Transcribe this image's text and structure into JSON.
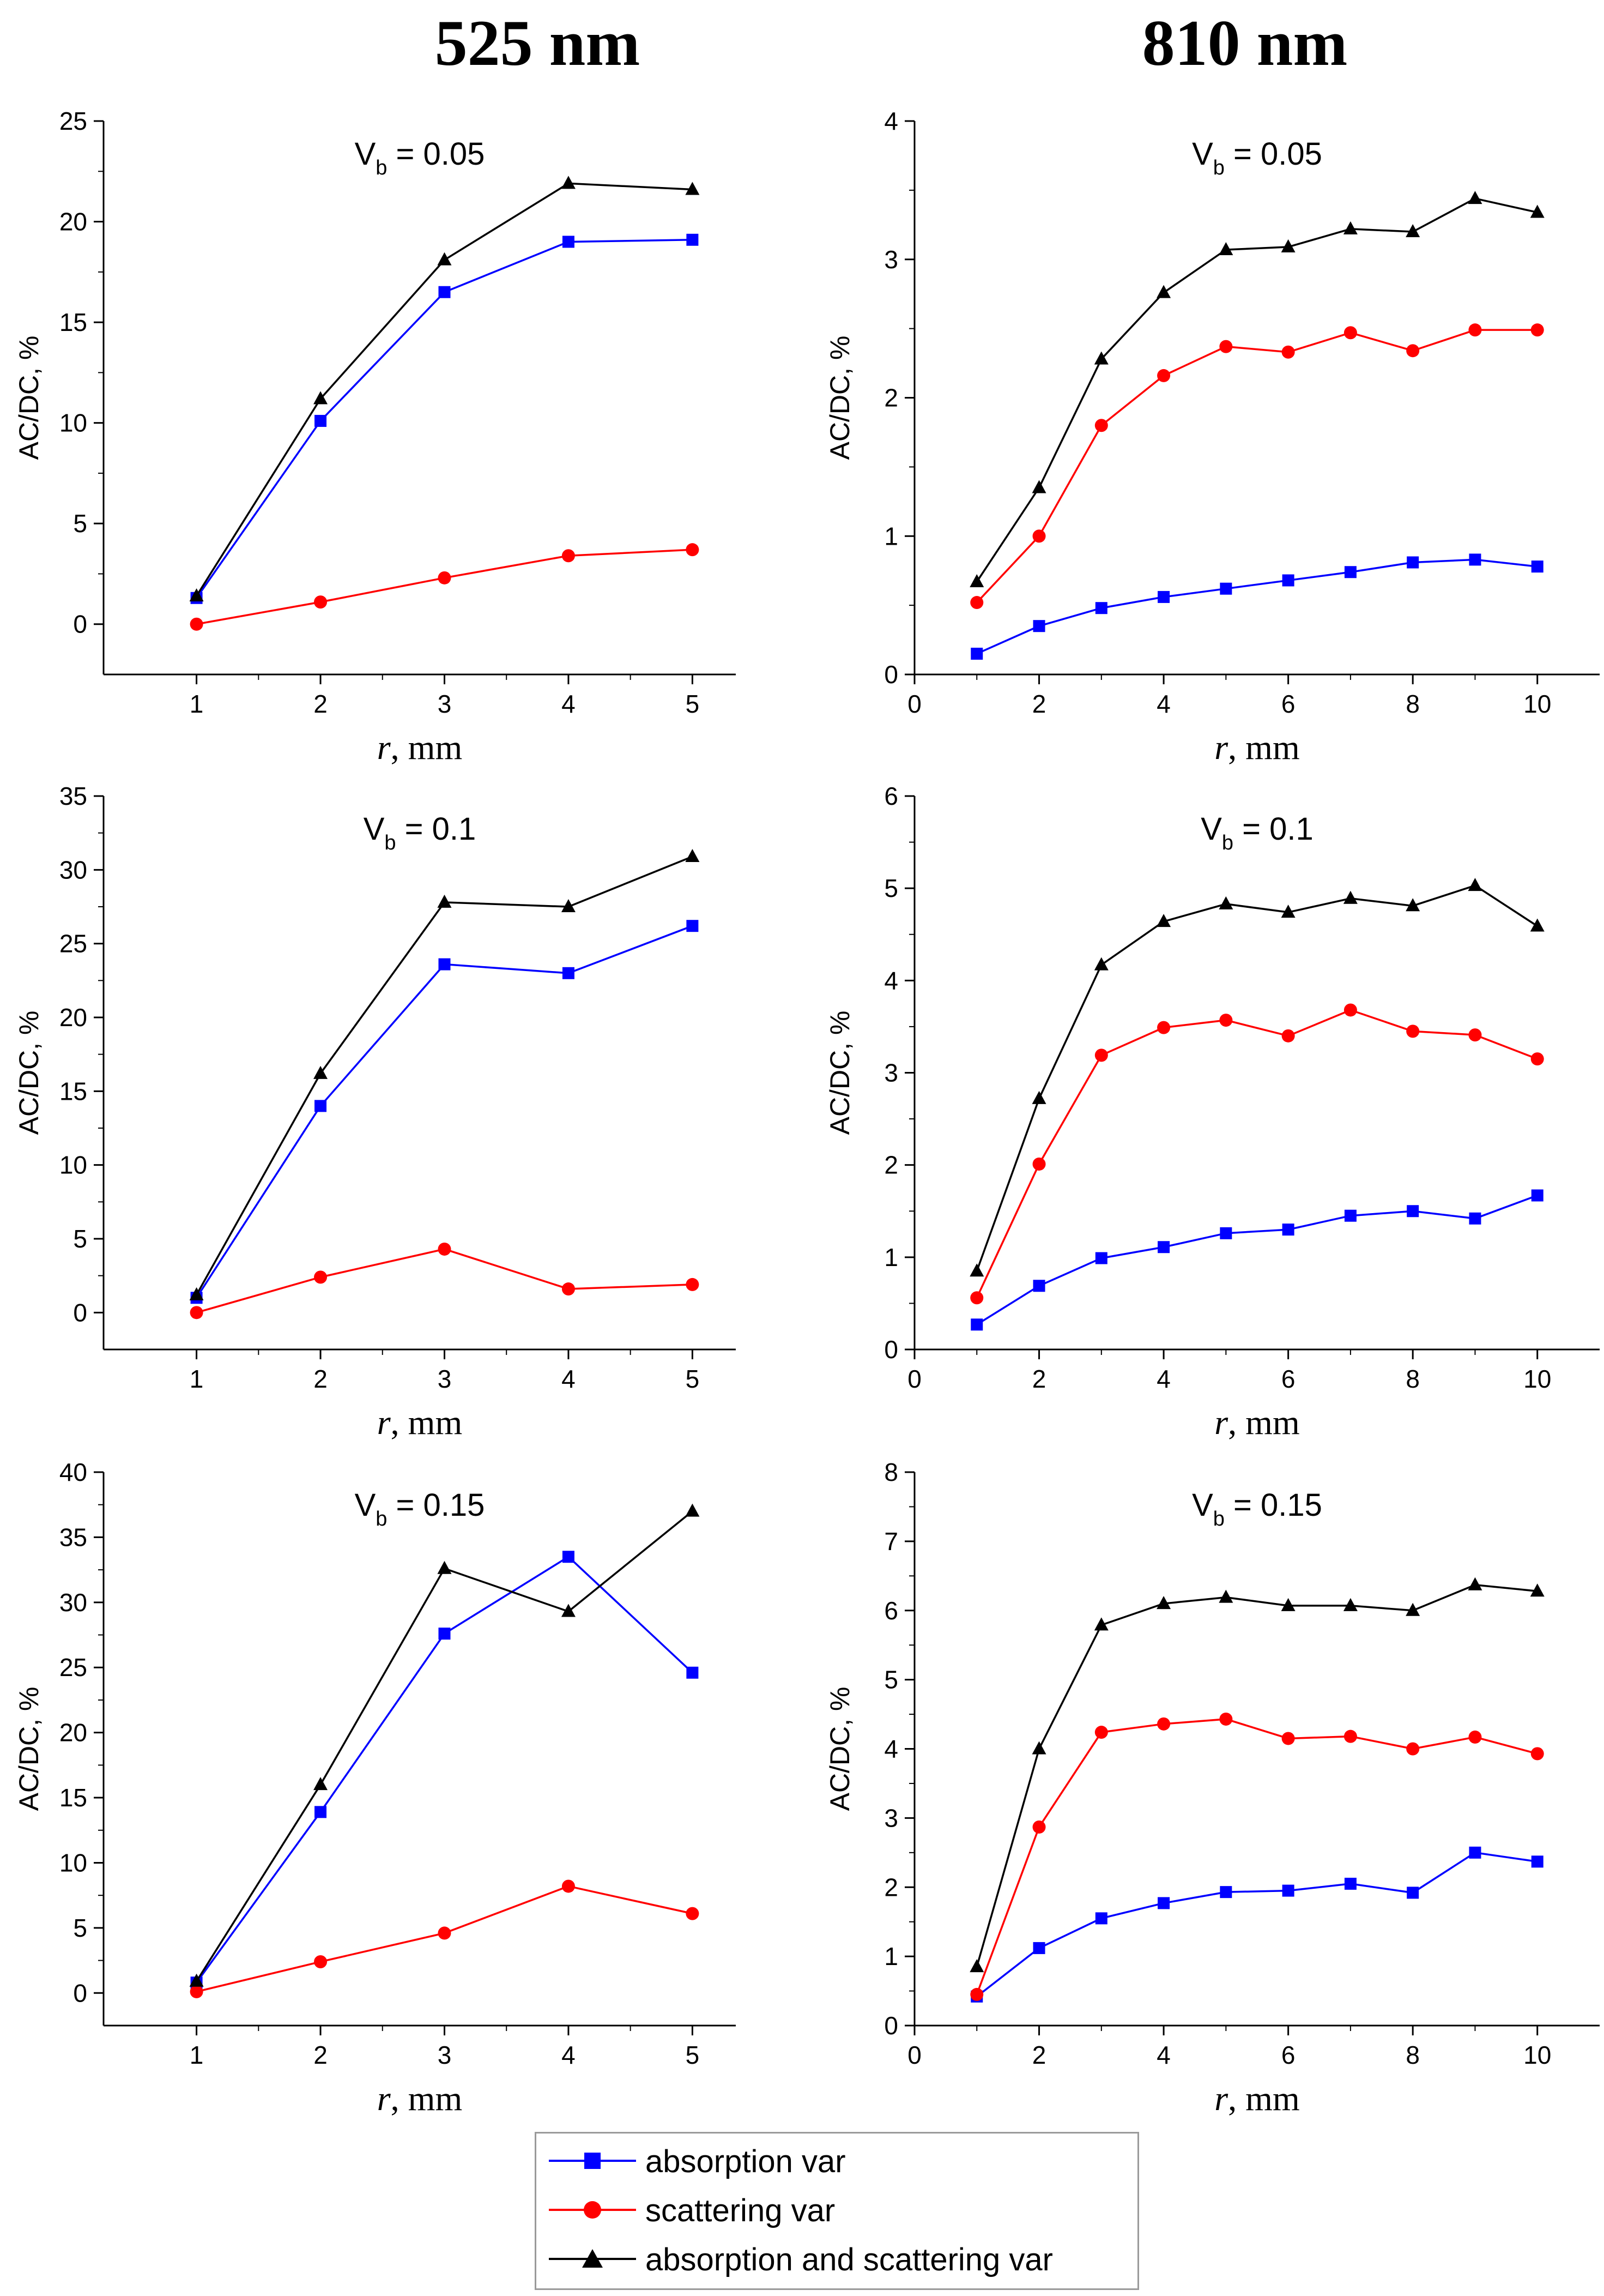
{
  "columns": [
    "525 nm",
    "810 nm"
  ],
  "legend": [
    {
      "label": "absorption var",
      "color": "#0000ff",
      "marker": "square"
    },
    {
      "label": "scattering var",
      "color": "#ff0000",
      "marker": "circle"
    },
    {
      "label": "absorption and scattering var",
      "color": "#000000",
      "marker": "triangle"
    }
  ],
  "chart_data": [
    {
      "type": "line",
      "title_main": "V",
      "title_sub": "b",
      "title_rest": " = 0.05",
      "xlabel_italic": "r",
      "xlabel_rest": ", mm",
      "ylabel": "AC/DC, %",
      "xlim": [
        0.25,
        5.35
      ],
      "ylim": [
        -2.5,
        25
      ],
      "xticks": [
        1,
        2,
        3,
        4,
        5
      ],
      "yticks": [
        0,
        5,
        10,
        15,
        20,
        25
      ],
      "x": [
        1,
        2,
        3,
        4,
        5
      ],
      "series": [
        {
          "name": "absorption var",
          "values": [
            1.3,
            10.1,
            16.5,
            19.0,
            19.1
          ]
        },
        {
          "name": "scattering var",
          "values": [
            0.0,
            1.1,
            2.3,
            3.4,
            3.7
          ]
        },
        {
          "name": "absorption and scattering var",
          "values": [
            1.4,
            11.2,
            18.1,
            21.9,
            21.6
          ]
        }
      ]
    },
    {
      "type": "line",
      "title_main": "V",
      "title_sub": "b",
      "title_rest": " = 0.05",
      "xlabel_italic": "r",
      "xlabel_rest": ", mm",
      "ylabel": "AC/DC, %",
      "xlim": [
        0,
        11
      ],
      "ylim": [
        0,
        4
      ],
      "xticks": [
        0,
        2,
        4,
        6,
        8,
        10
      ],
      "yticks": [
        0,
        1,
        2,
        3,
        4
      ],
      "x": [
        1,
        2,
        3,
        4,
        5,
        6,
        7,
        8,
        9,
        10
      ],
      "series": [
        {
          "name": "absorption var",
          "values": [
            0.15,
            0.35,
            0.48,
            0.56,
            0.62,
            0.68,
            0.74,
            0.81,
            0.83,
            0.78
          ]
        },
        {
          "name": "scattering var",
          "values": [
            0.52,
            1.0,
            1.8,
            2.16,
            2.37,
            2.33,
            2.47,
            2.34,
            2.49,
            2.49
          ]
        },
        {
          "name": "absorption and scattering var",
          "values": [
            0.67,
            1.35,
            2.28,
            2.76,
            3.07,
            3.09,
            3.22,
            3.2,
            3.44,
            3.34
          ]
        }
      ]
    },
    {
      "type": "line",
      "title_main": "V",
      "title_sub": "b",
      "title_rest": " = 0.1",
      "xlabel_italic": "r",
      "xlabel_rest": ", mm",
      "ylabel": "AC/DC, %",
      "xlim": [
        0.25,
        5.35
      ],
      "ylim": [
        -2.5,
        35
      ],
      "xticks": [
        1,
        2,
        3,
        4,
        5
      ],
      "yticks": [
        0,
        5,
        10,
        15,
        20,
        25,
        30,
        35
      ],
      "x": [
        1,
        2,
        3,
        4,
        5
      ],
      "series": [
        {
          "name": "absorption var",
          "values": [
            1.0,
            14.0,
            23.6,
            23.0,
            26.2
          ]
        },
        {
          "name": "scattering var",
          "values": [
            0.0,
            2.4,
            4.3,
            1.6,
            1.9
          ]
        },
        {
          "name": "absorption and scattering var",
          "values": [
            1.2,
            16.2,
            27.8,
            27.5,
            30.9
          ]
        }
      ]
    },
    {
      "type": "line",
      "title_main": "V",
      "title_sub": "b",
      "title_rest": " = 0.1",
      "xlabel_italic": "r",
      "xlabel_rest": ", mm",
      "ylabel": "AC/DC, %",
      "xlim": [
        0,
        11
      ],
      "ylim": [
        0,
        6
      ],
      "xticks": [
        0,
        2,
        4,
        6,
        8,
        10
      ],
      "yticks": [
        0,
        1,
        2,
        3,
        4,
        5,
        6
      ],
      "x": [
        1,
        2,
        3,
        4,
        5,
        6,
        7,
        8,
        9,
        10
      ],
      "series": [
        {
          "name": "absorption var",
          "values": [
            0.27,
            0.69,
            0.99,
            1.11,
            1.26,
            1.3,
            1.45,
            1.5,
            1.42,
            1.67
          ]
        },
        {
          "name": "scattering var",
          "values": [
            0.56,
            2.01,
            3.19,
            3.49,
            3.57,
            3.4,
            3.68,
            3.45,
            3.41,
            3.15
          ]
        },
        {
          "name": "absorption and scattering var",
          "values": [
            0.85,
            2.72,
            4.17,
            4.64,
            4.83,
            4.74,
            4.89,
            4.81,
            5.03,
            4.59
          ]
        }
      ]
    },
    {
      "type": "line",
      "title_main": "V",
      "title_sub": "b",
      "title_rest": " = 0.15",
      "xlabel_italic": "r",
      "xlabel_rest": ", mm",
      "ylabel": "AC/DC, %",
      "xlim": [
        0.25,
        5.35
      ],
      "ylim": [
        -2.5,
        40
      ],
      "xticks": [
        1,
        2,
        3,
        4,
        5
      ],
      "yticks": [
        0,
        5,
        10,
        15,
        20,
        25,
        30,
        35,
        40
      ],
      "x": [
        1,
        2,
        3,
        4,
        5
      ],
      "series": [
        {
          "name": "absorption var",
          "values": [
            0.8,
            13.9,
            27.6,
            33.5,
            24.6
          ]
        },
        {
          "name": "scattering var",
          "values": [
            0.1,
            2.4,
            4.6,
            8.2,
            6.1
          ]
        },
        {
          "name": "absorption and scattering var",
          "values": [
            0.9,
            16.0,
            32.6,
            29.3,
            37.0
          ]
        }
      ]
    },
    {
      "type": "line",
      "title_main": "V",
      "title_sub": "b",
      "title_rest": " = 0.15",
      "xlabel_italic": "r",
      "xlabel_rest": ", mm",
      "ylabel": "AC/DC, %",
      "xlim": [
        0,
        11
      ],
      "ylim": [
        0,
        8
      ],
      "xticks": [
        0,
        2,
        4,
        6,
        8,
        10
      ],
      "yticks": [
        0,
        1,
        2,
        3,
        4,
        5,
        6,
        7,
        8
      ],
      "x": [
        1,
        2,
        3,
        4,
        5,
        6,
        7,
        8,
        9,
        10
      ],
      "series": [
        {
          "name": "absorption var",
          "values": [
            0.42,
            1.12,
            1.55,
            1.77,
            1.93,
            1.95,
            2.05,
            1.92,
            2.5,
            2.37
          ]
        },
        {
          "name": "scattering var",
          "values": [
            0.45,
            2.87,
            4.24,
            4.36,
            4.43,
            4.15,
            4.18,
            4.0,
            4.17,
            3.93
          ]
        },
        {
          "name": "absorption and scattering var",
          "values": [
            0.85,
            4.0,
            5.79,
            6.1,
            6.19,
            6.07,
            6.07,
            6.0,
            6.37,
            6.28
          ]
        }
      ]
    }
  ]
}
